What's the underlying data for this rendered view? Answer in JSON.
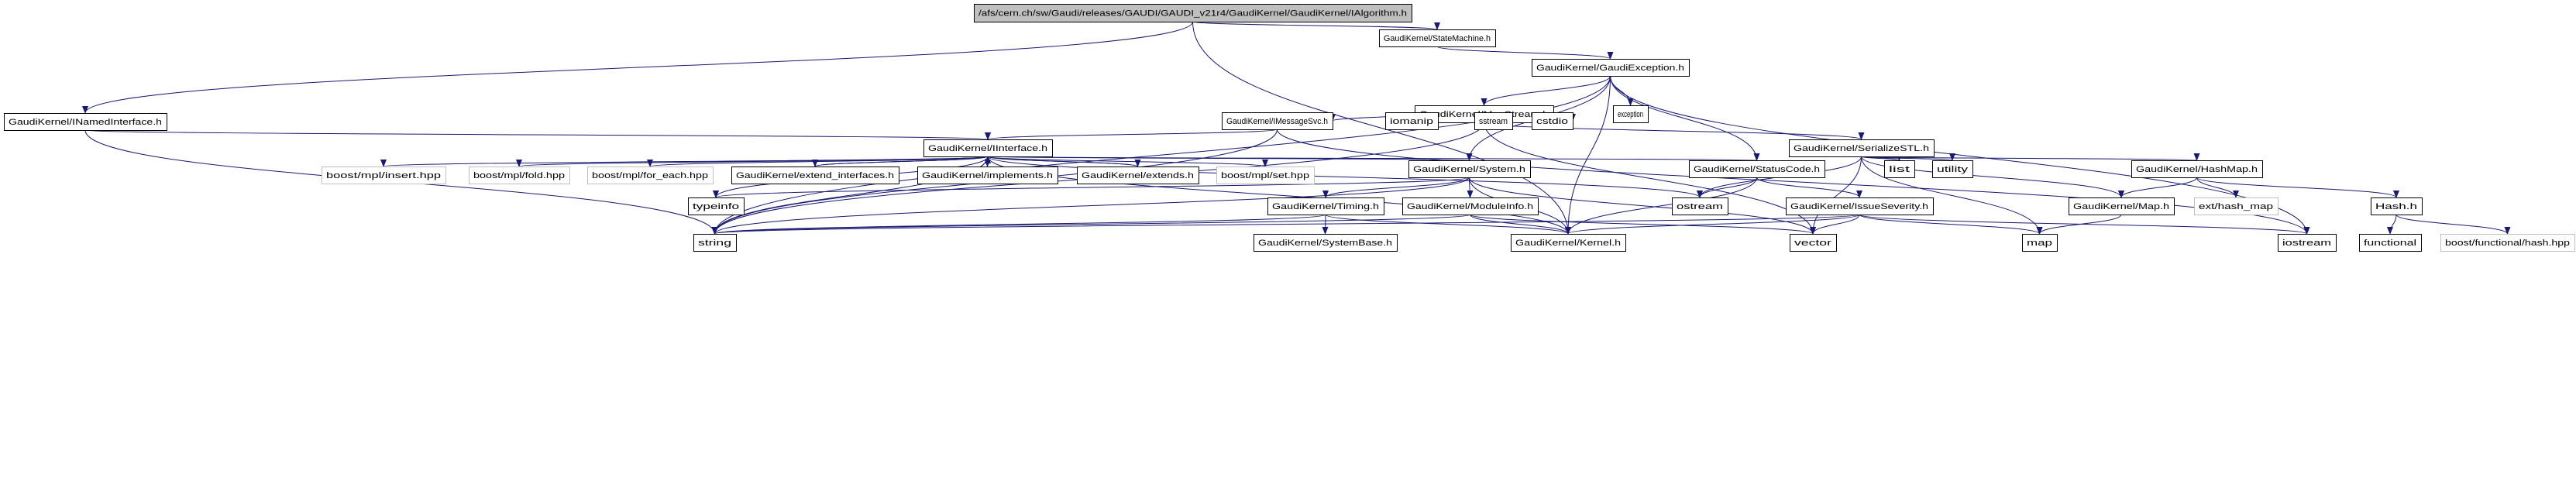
{
  "graph": {
    "type": "include-dependency-graph",
    "edge_color": "#191970",
    "root_fill": "#bfbfbf",
    "nodes": [
      {
        "id": "root",
        "label": "/afs/cern.ch/sw/Gaudi/releases/GAUDI/GAUDI_v21r4/GaudiKernel/GaudiKernel/IAlgorithm.h",
        "root": true
      },
      {
        "id": "StateMachine",
        "label": "GaudiKernel/StateMachine.h"
      },
      {
        "id": "GaudiException",
        "label": "GaudiKernel/GaudiException.h"
      },
      {
        "id": "exception",
        "label": "exception"
      },
      {
        "id": "MsgStream",
        "label": "GaudiKernel/MsgStream.h"
      },
      {
        "id": "INamedInterface",
        "label": "GaudiKernel/INamedInterface.h"
      },
      {
        "id": "IMessageSvc",
        "label": "GaudiKernel/IMessageSvc.h"
      },
      {
        "id": "iomanip",
        "label": "iomanip"
      },
      {
        "id": "sstream",
        "label": "sstream"
      },
      {
        "id": "cstdio",
        "label": "cstdio"
      },
      {
        "id": "IInterface",
        "label": "GaudiKernel/IInterface.h"
      },
      {
        "id": "SerializeSTL",
        "label": "GaudiKernel/SerializeSTL.h"
      },
      {
        "id": "insert",
        "label": "boost/mpl/insert.hpp",
        "external": true
      },
      {
        "id": "fold",
        "label": "boost/mpl/fold.hpp",
        "external": true
      },
      {
        "id": "for_each",
        "label": "boost/mpl/for_each.hpp",
        "external": true
      },
      {
        "id": "extend_interfaces",
        "label": "GaudiKernel/extend_interfaces.h"
      },
      {
        "id": "implements",
        "label": "GaudiKernel/implements.h"
      },
      {
        "id": "extends",
        "label": "GaudiKernel/extends.h"
      },
      {
        "id": "set",
        "label": "boost/mpl/set.hpp",
        "external": true
      },
      {
        "id": "System",
        "label": "GaudiKernel/System.h"
      },
      {
        "id": "StatusCode",
        "label": "GaudiKernel/StatusCode.h"
      },
      {
        "id": "list",
        "label": "list"
      },
      {
        "id": "utility",
        "label": "utility"
      },
      {
        "id": "HashMap",
        "label": "GaudiKernel/HashMap.h"
      },
      {
        "id": "typeinfo",
        "label": "typeinfo"
      },
      {
        "id": "Timing",
        "label": "GaudiKernel/Timing.h"
      },
      {
        "id": "ModuleInfo",
        "label": "GaudiKernel/ModuleInfo.h"
      },
      {
        "id": "ostream",
        "label": "ostream"
      },
      {
        "id": "IssueSeverity",
        "label": "GaudiKernel/IssueSeverity.h"
      },
      {
        "id": "Map",
        "label": "GaudiKernel/Map.h"
      },
      {
        "id": "hash_map",
        "label": "ext/hash_map",
        "external": true
      },
      {
        "id": "Hash",
        "label": "Hash.h"
      },
      {
        "id": "string",
        "label": "string"
      },
      {
        "id": "SystemBase",
        "label": "GaudiKernel/SystemBase.h"
      },
      {
        "id": "Kernel",
        "label": "GaudiKernel/Kernel.h"
      },
      {
        "id": "vector",
        "label": "vector"
      },
      {
        "id": "map",
        "label": "map"
      },
      {
        "id": "iostream",
        "label": "iostream"
      },
      {
        "id": "functional",
        "label": "functional"
      },
      {
        "id": "boosthash",
        "label": "boost/functional/hash.hpp",
        "external": true
      }
    ],
    "edges": [
      [
        "root",
        "INamedInterface"
      ],
      [
        "root",
        "StateMachine"
      ],
      [
        "root",
        "Kernel"
      ],
      [
        "StateMachine",
        "GaudiException"
      ],
      [
        "GaudiException",
        "string"
      ],
      [
        "GaudiException",
        "MsgStream"
      ],
      [
        "GaudiException",
        "exception"
      ],
      [
        "GaudiException",
        "System"
      ],
      [
        "GaudiException",
        "StatusCode"
      ],
      [
        "GaudiException",
        "Kernel"
      ],
      [
        "GaudiException",
        "iostream"
      ],
      [
        "MsgStream",
        "string"
      ],
      [
        "MsgStream",
        "IMessageSvc"
      ],
      [
        "MsgStream",
        "iomanip"
      ],
      [
        "MsgStream",
        "sstream"
      ],
      [
        "MsgStream",
        "cstdio"
      ],
      [
        "MsgStream",
        "SerializeSTL"
      ],
      [
        "MsgStream",
        "vector"
      ],
      [
        "INamedInterface",
        "string"
      ],
      [
        "INamedInterface",
        "IInterface"
      ],
      [
        "IMessageSvc",
        "IInterface"
      ],
      [
        "IMessageSvc",
        "string"
      ],
      [
        "IMessageSvc",
        "iostream"
      ],
      [
        "IInterface",
        "insert"
      ],
      [
        "IInterface",
        "fold"
      ],
      [
        "IInterface",
        "for_each"
      ],
      [
        "IInterface",
        "extend_interfaces"
      ],
      [
        "IInterface",
        "implements"
      ],
      [
        "IInterface",
        "extends"
      ],
      [
        "IInterface",
        "set"
      ],
      [
        "IInterface",
        "System"
      ],
      [
        "IInterface",
        "StatusCode"
      ],
      [
        "IInterface",
        "ostream"
      ],
      [
        "IInterface",
        "typeinfo"
      ],
      [
        "IInterface",
        "string"
      ],
      [
        "IInterface",
        "Kernel"
      ],
      [
        "extend_interfaces",
        "IInterface"
      ],
      [
        "implements",
        "IInterface"
      ],
      [
        "extends",
        "IInterface"
      ],
      [
        "System",
        "string"
      ],
      [
        "System",
        "typeinfo"
      ],
      [
        "System",
        "Timing"
      ],
      [
        "System",
        "ModuleInfo"
      ],
      [
        "System",
        "Kernel"
      ],
      [
        "System",
        "vector"
      ],
      [
        "Timing",
        "SystemBase"
      ],
      [
        "Timing",
        "Kernel"
      ],
      [
        "Timing",
        "string"
      ],
      [
        "ModuleInfo",
        "string"
      ],
      [
        "ModuleInfo",
        "Kernel"
      ],
      [
        "ModuleInfo",
        "vector"
      ],
      [
        "StatusCode",
        "ostream"
      ],
      [
        "StatusCode",
        "IssueSeverity"
      ],
      [
        "StatusCode",
        "Kernel"
      ],
      [
        "IssueSeverity",
        "string"
      ],
      [
        "IssueSeverity",
        "Kernel"
      ],
      [
        "IssueSeverity",
        "vector"
      ],
      [
        "IssueSeverity",
        "map"
      ],
      [
        "IssueSeverity",
        "iostream"
      ],
      [
        "SerializeSTL",
        "ostream"
      ],
      [
        "SerializeSTL",
        "vector"
      ],
      [
        "SerializeSTL",
        "list"
      ],
      [
        "SerializeSTL",
        "utility"
      ],
      [
        "SerializeSTL",
        "map"
      ],
      [
        "SerializeSTL",
        "Map"
      ],
      [
        "SerializeSTL",
        "HashMap"
      ],
      [
        "HashMap",
        "Map"
      ],
      [
        "HashMap",
        "hash_map"
      ],
      [
        "HashMap",
        "Hash"
      ],
      [
        "Map",
        "map"
      ],
      [
        "Hash",
        "functional"
      ],
      [
        "Hash",
        "boosthash"
      ]
    ]
  }
}
